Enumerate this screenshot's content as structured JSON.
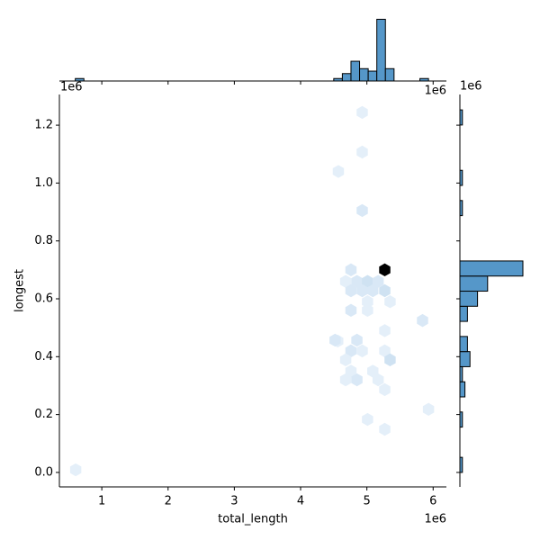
{
  "chart_data": {
    "type": "hexbin",
    "x_label": "total_length",
    "y_label": "longest",
    "x_offset": "1e6",
    "y_offset": "1e6",
    "xlim": [
      360000,
      6200000
    ],
    "ylim": [
      -50000,
      1306000
    ],
    "xticks": [
      {
        "value": 1000000,
        "label": "1"
      },
      {
        "value": 2000000,
        "label": "2"
      },
      {
        "value": 3000000,
        "label": "3"
      },
      {
        "value": 4000000,
        "label": "4"
      },
      {
        "value": 5000000,
        "label": "5"
      },
      {
        "value": 6000000,
        "label": "6"
      }
    ],
    "yticks": [
      {
        "value": 0,
        "label": "0.0"
      },
      {
        "value": 200000,
        "label": "0.2"
      },
      {
        "value": 400000,
        "label": "0.4"
      },
      {
        "value": 600000,
        "label": "0.6"
      },
      {
        "value": 800000,
        "label": "0.8"
      },
      {
        "value": 1000000,
        "label": "1.0"
      },
      {
        "value": 1200000,
        "label": "1.2"
      }
    ],
    "cmap": [
      "#eef5fc",
      "#c4dbef",
      "#000000"
    ],
    "hist_color": "#5597c9",
    "hexes": {
      "x": [
        606000,
        4560000,
        4570000,
        4930000,
        4930000,
        4930000,
        4760000,
        4680000,
        4850000,
        5010000,
        5170000,
        5270000,
        4760000,
        4930000,
        5090000,
        5270000,
        5350000,
        5010000,
        4760000,
        5010000,
        5840000,
        5270000,
        4520000,
        4850000,
        4760000,
        5270000,
        5350000,
        4680000,
        4760000,
        5090000,
        4680000,
        4850000,
        5170000,
        5270000,
        5930000,
        5010000,
        5270000,
        4930000
      ],
      "y": [
        9000,
        454000,
        1040000,
        1244000,
        1107000,
        905000,
        700000,
        660000,
        660000,
        660000,
        660000,
        700000,
        628000,
        628000,
        628000,
        628000,
        590000,
        590000,
        560000,
        560000,
        525000,
        490000,
        457000,
        457000,
        420000,
        420000,
        389000,
        389000,
        350000,
        350000,
        320000,
        320000,
        320000,
        286000,
        218000,
        183000,
        149000,
        420000
      ],
      "counts": [
        1,
        1,
        1,
        1,
        1,
        2,
        2,
        1,
        2,
        3,
        2,
        8,
        2,
        2,
        2,
        3,
        1,
        1,
        2,
        1,
        2,
        1,
        2,
        2,
        2,
        1,
        3,
        1,
        1,
        1,
        1,
        2,
        1,
        1,
        1,
        1,
        1,
        1
      ]
    },
    "top_hist": {
      "bins": [
        600000,
        730000,
        860000,
        990000,
        1120000,
        1250000,
        1380000,
        1510000,
        1640000,
        1770000,
        1900000,
        2030000,
        2160000,
        2290000,
        2420000,
        2550000,
        2680000,
        2810000,
        2940000,
        3070000,
        3200000,
        3330000,
        3460000,
        3590000,
        3720000,
        3850000,
        3980000,
        4110000,
        4240000,
        4370000,
        4500000,
        4630000,
        4760000,
        4890000,
        5020000,
        5150000,
        5280000,
        5410000,
        5540000,
        5670000,
        5800000,
        5930000,
        6060000
      ],
      "counts": [
        1,
        0,
        0,
        0,
        0,
        0,
        0,
        0,
        0,
        0,
        0,
        0,
        0,
        0,
        0,
        0,
        0,
        0,
        0,
        0,
        0,
        0,
        0,
        0,
        0,
        0,
        0,
        0,
        0,
        0,
        1,
        3,
        8,
        5,
        4,
        25,
        5,
        0,
        0,
        0,
        1,
        0
      ],
      "count_lim": [
        0,
        26.25
      ]
    },
    "right_hist": {
      "bins": [
        0,
        52200,
        104400,
        156600,
        208800,
        261000,
        313200,
        365400,
        417600,
        469800,
        522000,
        574200,
        626400,
        678600,
        730800,
        783000,
        835200,
        887400,
        939600,
        991800,
        1044000,
        1096200,
        1148400,
        1200600,
        1252800
      ],
      "counts": [
        1,
        0,
        0,
        1,
        0,
        2,
        1,
        4,
        3,
        0,
        3,
        7,
        11,
        25,
        0,
        0,
        0,
        1,
        0,
        1,
        0,
        0,
        0,
        1
      ],
      "count_lim": [
        0,
        26.25
      ]
    }
  }
}
